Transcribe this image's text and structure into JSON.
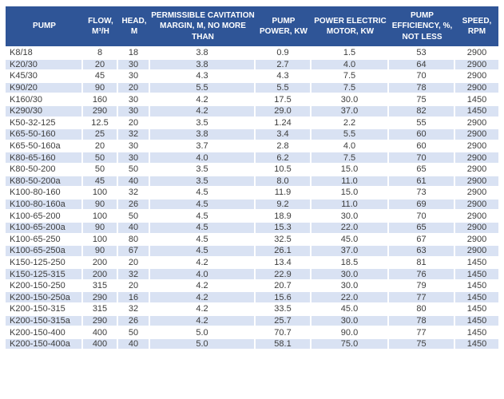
{
  "style": {
    "header_bg": "#2F5597",
    "header_text": "#FFFFFF",
    "stripe_bg": "#D9E2F3",
    "row_bg": "#FFFFFF",
    "body_text": "#3D3D3D"
  },
  "table": {
    "columns": [
      {
        "label": "PUMP"
      },
      {
        "label": "FLOW, M³/H"
      },
      {
        "label": "HEAD, M"
      },
      {
        "label": "PERMISSIBLE CAVITATION MARGIN, M, NO MORE THAN"
      },
      {
        "label": "PUMP POWER, KW"
      },
      {
        "label": "POWER ELECTRIC MOTOR, KW"
      },
      {
        "label": "PUMP EFFICIENCY, %, NOT LESS"
      },
      {
        "label": "SPEED, RPM"
      }
    ],
    "rows": [
      [
        "K8/18",
        "8",
        "18",
        "3.8",
        "0.9",
        "1.5",
        "53",
        "2900"
      ],
      [
        "K20/30",
        "20",
        "30",
        "3.8",
        "2.7",
        "4.0",
        "64",
        "2900"
      ],
      [
        "K45/30",
        "45",
        "30",
        "4.3",
        "4.3",
        "7.5",
        "70",
        "2900"
      ],
      [
        "K90/20",
        "90",
        "20",
        "5.5",
        "5.5",
        "7.5",
        "78",
        "2900"
      ],
      [
        "K160/30",
        "160",
        "30",
        "4.2",
        "17.5",
        "30.0",
        "75",
        "1450"
      ],
      [
        "K290/30",
        "290",
        "30",
        "4.2",
        "29.0",
        "37.0",
        "82",
        "1450"
      ],
      [
        "K50-32-125",
        "12.5",
        "20",
        "3.5",
        "1.24",
        "2.2",
        "55",
        "2900"
      ],
      [
        "K65-50-160",
        "25",
        "32",
        "3.8",
        "3.4",
        "5.5",
        "60",
        "2900"
      ],
      [
        "K65-50-160a",
        "20",
        "30",
        "3.7",
        "2.8",
        "4.0",
        "60",
        "2900"
      ],
      [
        "K80-65-160",
        "50",
        "30",
        "4.0",
        "6.2",
        "7.5",
        "70",
        "2900"
      ],
      [
        "K80-50-200",
        "50",
        "50",
        "3.5",
        "10.5",
        "15.0",
        "65",
        "2900"
      ],
      [
        "K80-50-200a",
        "45",
        "40",
        "3.5",
        "8.0",
        "11.0",
        "61",
        "2900"
      ],
      [
        "K100-80-160",
        "100",
        "32",
        "4.5",
        "11.9",
        "15.0",
        "73",
        "2900"
      ],
      [
        "K100-80-160a",
        "90",
        "26",
        "4.5",
        "9.2",
        "11.0",
        "69",
        "2900"
      ],
      [
        "K100-65-200",
        "100",
        "50",
        "4.5",
        "18.9",
        "30.0",
        "70",
        "2900"
      ],
      [
        "K100-65-200a",
        "90",
        "40",
        "4.5",
        "15.3",
        "22.0",
        "65",
        "2900"
      ],
      [
        "K100-65-250",
        "100",
        "80",
        "4.5",
        "32.5",
        "45.0",
        "67",
        "2900"
      ],
      [
        "K100-65-250a",
        "90",
        "67",
        "4.5",
        "26.1",
        "37.0",
        "63",
        "2900"
      ],
      [
        "K150-125-250",
        "200",
        "20",
        "4.2",
        "13.4",
        "18.5",
        "81",
        "1450"
      ],
      [
        "K150-125-315",
        "200",
        "32",
        "4.0",
        "22.9",
        "30.0",
        "76",
        "1450"
      ],
      [
        "K200-150-250",
        "315",
        "20",
        "4.2",
        "20.7",
        "30.0",
        "79",
        "1450"
      ],
      [
        "K200-150-250a",
        "290",
        "16",
        "4.2",
        "15.6",
        "22.0",
        "77",
        "1450"
      ],
      [
        "K200-150-315",
        "315",
        "32",
        "4.2",
        "33.5",
        "45.0",
        "80",
        "1450"
      ],
      [
        "K200-150-315a",
        "290",
        "26",
        "4.2",
        "25.7",
        "30.0",
        "78",
        "1450"
      ],
      [
        "K200-150-400",
        "400",
        "50",
        "5.0",
        "70.7",
        "90.0",
        "77",
        "1450"
      ],
      [
        "K200-150-400a",
        "400",
        "40",
        "5.0",
        "58.1",
        "75.0",
        "75",
        "1450"
      ]
    ]
  }
}
